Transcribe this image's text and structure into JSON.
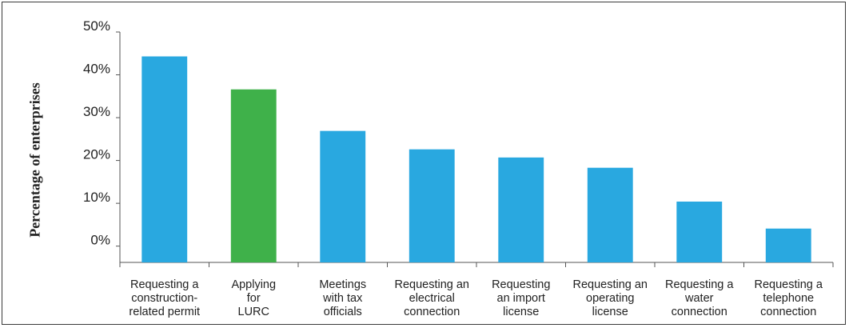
{
  "chart_data": {
    "type": "bar",
    "ylabel": "Percentage of enterprises",
    "xlabel": "",
    "ylim": [
      -3.8,
      50
    ],
    "yticks": [
      0,
      10,
      20,
      30,
      40,
      50
    ],
    "ytick_labels": [
      "0%",
      "10%",
      "20%",
      "30%",
      "40%",
      "50%"
    ],
    "categories": [
      "Requesting a construction-related permit",
      "Applying for LURC",
      "Meetings with tax officials",
      "Requesting an electrical connection",
      "Requesting an import license",
      "Requesting an operating license",
      "Requesting a water connection",
      "Requesting a telephone connection"
    ],
    "category_label_lines": [
      [
        "Requesting a",
        "construction-",
        "related permit"
      ],
      [
        "Applying",
        "for",
        "LURC"
      ],
      [
        "Meetings",
        "with tax",
        "officials"
      ],
      [
        "Requesting an",
        "electrical",
        "connection"
      ],
      [
        "Requesting",
        "an import",
        "license"
      ],
      [
        "Requesting an",
        "operating",
        "license"
      ],
      [
        "Requesting a",
        "water",
        "connection"
      ],
      [
        "Requesting a",
        "telephone",
        "connection"
      ]
    ],
    "values": [
      44.3,
      36.6,
      26.9,
      22.6,
      20.7,
      18.3,
      10.4,
      4.1
    ],
    "bar_colors": [
      "#29a8e0",
      "#3fb14a",
      "#29a8e0",
      "#29a8e0",
      "#29a8e0",
      "#29a8e0",
      "#29a8e0",
      "#29a8e0"
    ],
    "grid": false,
    "legend": "none"
  }
}
